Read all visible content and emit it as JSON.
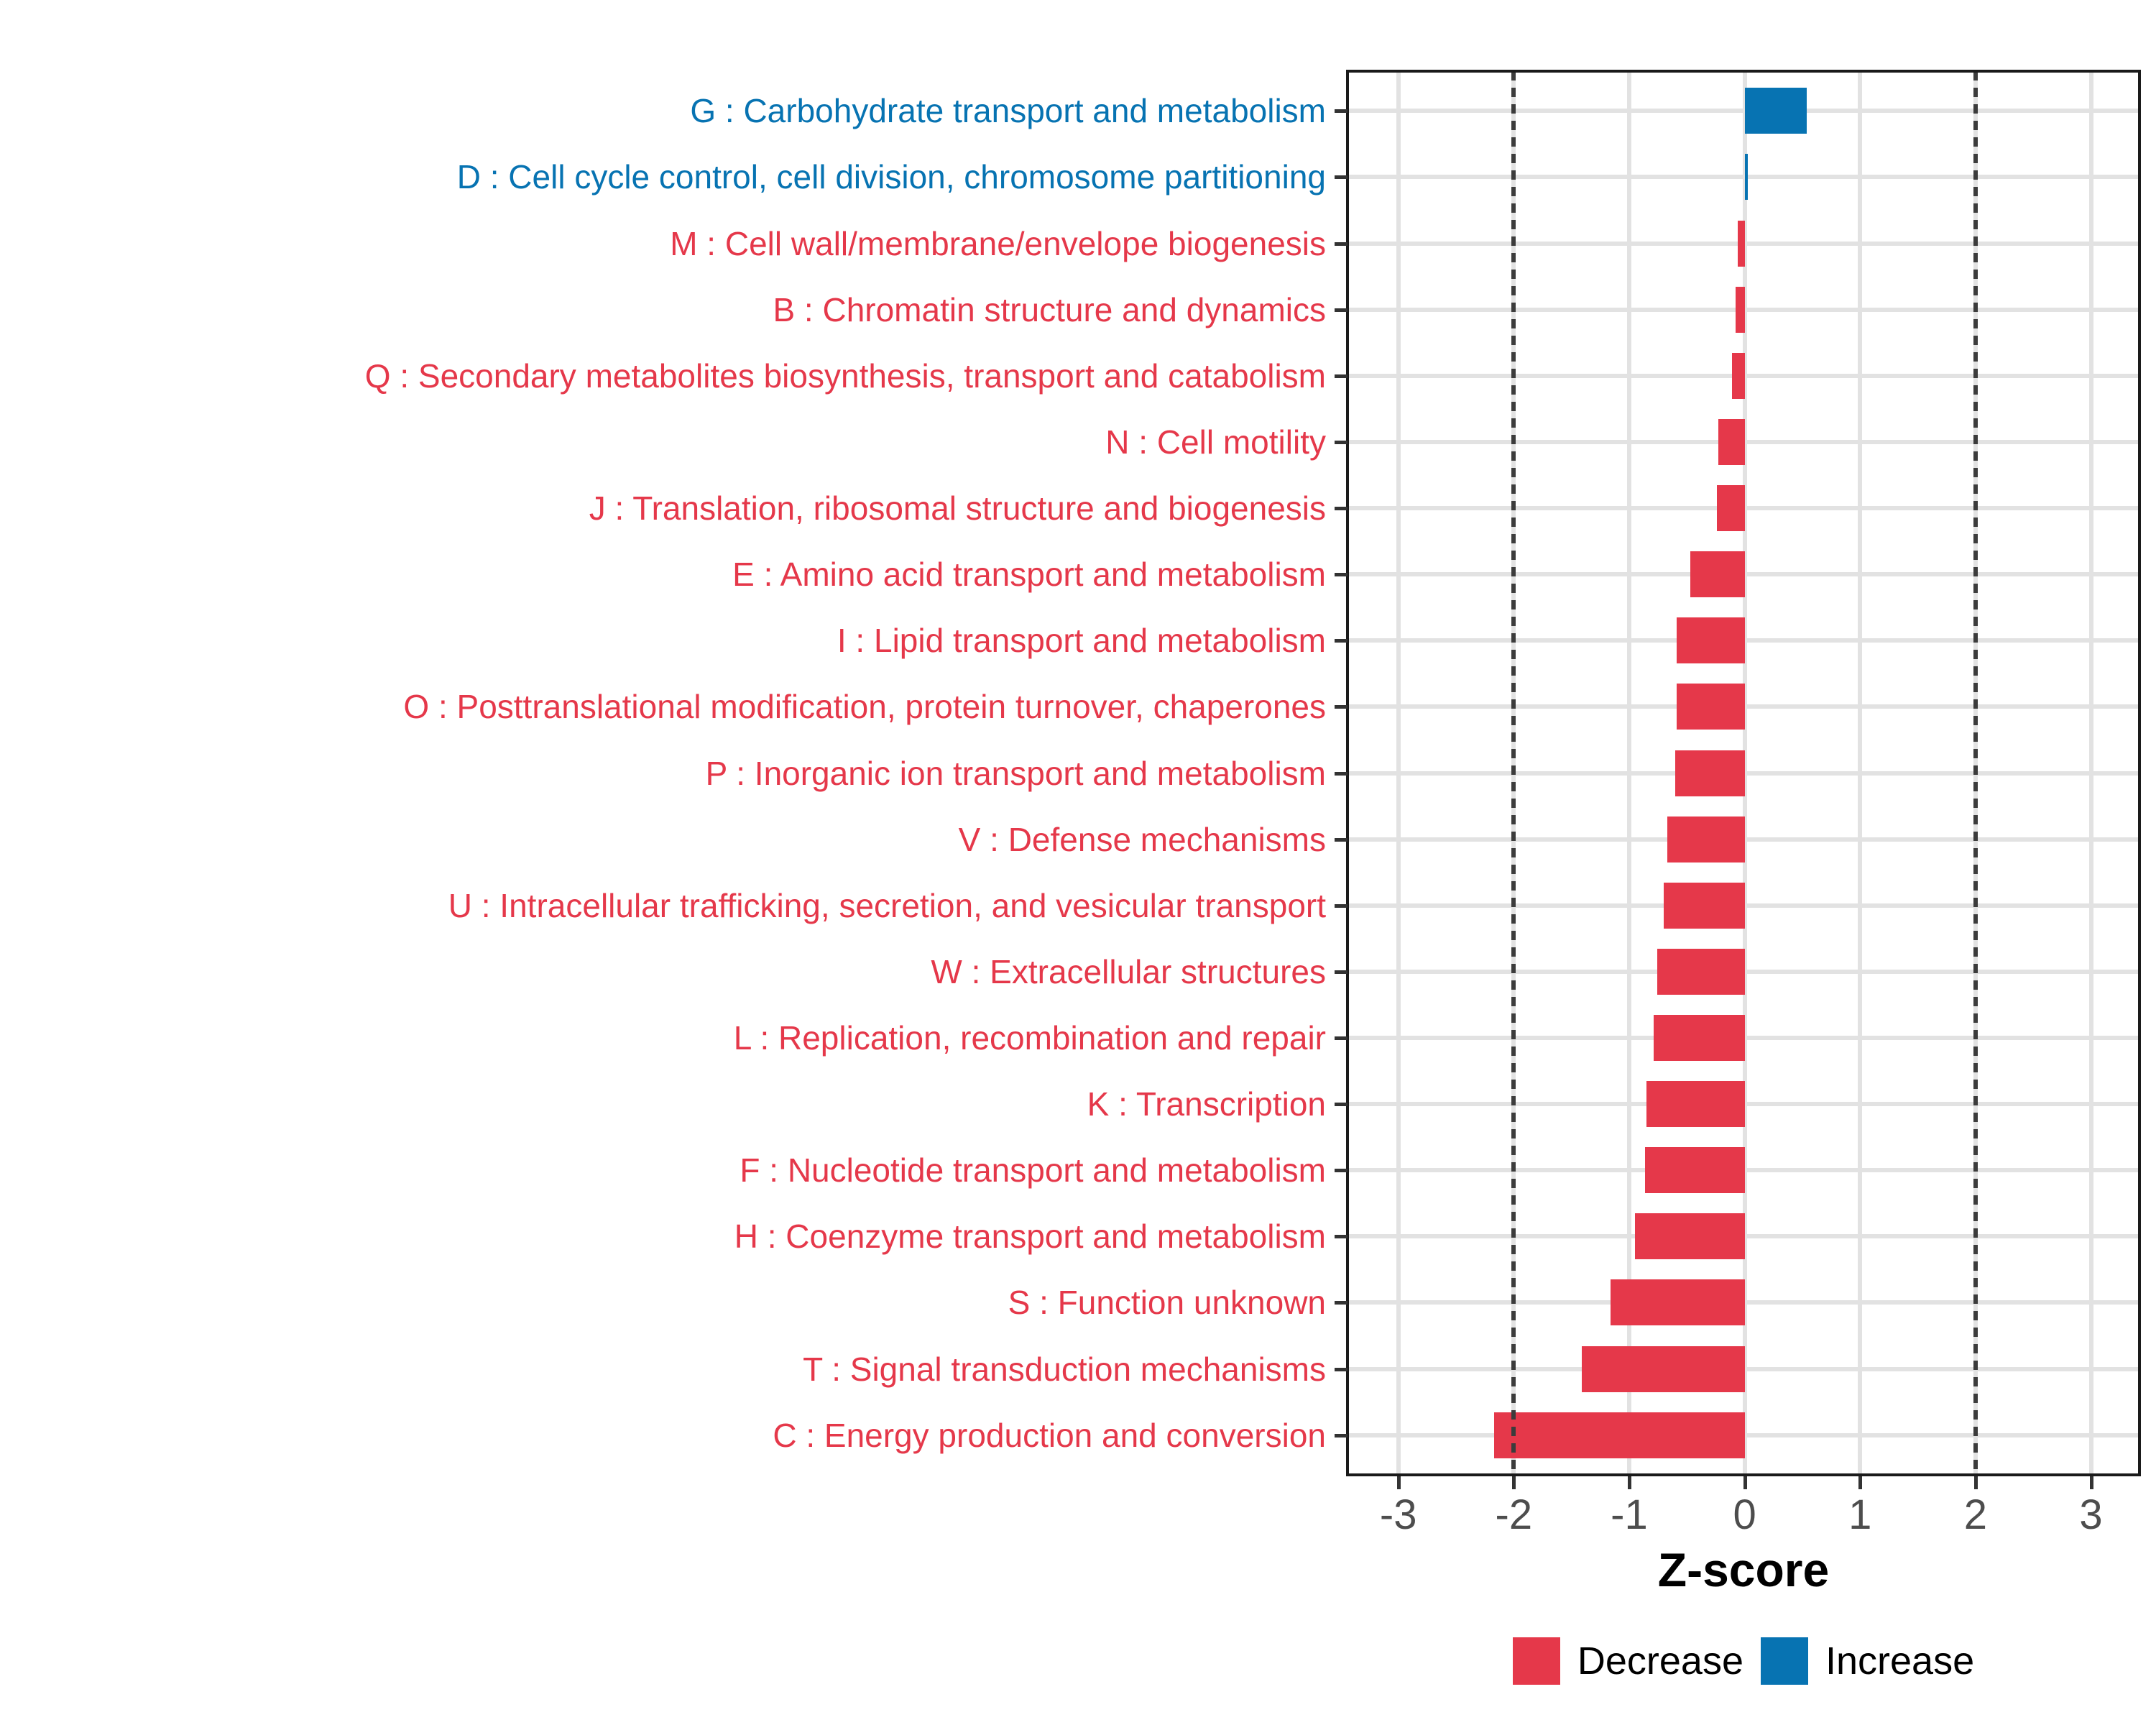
{
  "figure": {
    "background": "#FFFFFF",
    "panel_border_color": "#1A1A1A",
    "gridline_color": "#E2E2E2",
    "threshold_line_color": "#3C3C3C",
    "axis_tick_color": "#333333",
    "axis_text_color": "#4D4D4D"
  },
  "chart_data": {
    "type": "bar",
    "orientation": "horizontal",
    "title": "",
    "xlabel": "Z-score",
    "ylabel": "",
    "xlim": [
      -3.44,
      3.42
    ],
    "x_ticks": [
      -3,
      -2,
      -1,
      0,
      1,
      2,
      3
    ],
    "grid": "major-only",
    "threshold_lines": [
      -2,
      2
    ],
    "legend_position": "bottom-center",
    "legend": [
      {
        "label": "Decrease",
        "color": "#E5384A"
      },
      {
        "label": "Increase",
        "color": "#0773B2"
      }
    ],
    "bars": [
      {
        "label": "G : Carbohydrate transport and metabolism",
        "value": 0.54,
        "direction": "Increase"
      },
      {
        "label": "D : Cell cycle control, cell division, chromosome partitioning",
        "value": 0.03,
        "direction": "Increase"
      },
      {
        "label": "M : Cell wall/membrane/envelope biogenesis",
        "value": -0.06,
        "direction": "Decrease"
      },
      {
        "label": "B : Chromatin structure and dynamics",
        "value": -0.08,
        "direction": "Decrease"
      },
      {
        "label": "Q : Secondary metabolites biosynthesis, transport and catabolism",
        "value": -0.11,
        "direction": "Decrease"
      },
      {
        "label": "N : Cell motility",
        "value": -0.23,
        "direction": "Decrease"
      },
      {
        "label": "J : Translation, ribosomal structure and biogenesis",
        "value": -0.24,
        "direction": "Decrease"
      },
      {
        "label": "E : Amino acid transport and metabolism",
        "value": -0.47,
        "direction": "Decrease"
      },
      {
        "label": "I : Lipid transport and metabolism",
        "value": -0.59,
        "direction": "Decrease"
      },
      {
        "label": "O : Posttranslational modification, protein turnover, chaperones",
        "value": -0.59,
        "direction": "Decrease"
      },
      {
        "label": "P : Inorganic ion transport and metabolism",
        "value": -0.6,
        "direction": "Decrease"
      },
      {
        "label": "V : Defense mechanisms",
        "value": -0.67,
        "direction": "Decrease"
      },
      {
        "label": "U : Intracellular trafficking, secretion, and vesicular transport",
        "value": -0.7,
        "direction": "Decrease"
      },
      {
        "label": "W : Extracellular structures",
        "value": -0.76,
        "direction": "Decrease"
      },
      {
        "label": "L : Replication, recombination and repair",
        "value": -0.79,
        "direction": "Decrease"
      },
      {
        "label": "K : Transcription",
        "value": -0.85,
        "direction": "Decrease"
      },
      {
        "label": "F : Nucleotide transport and metabolism",
        "value": -0.86,
        "direction": "Decrease"
      },
      {
        "label": "H : Coenzyme transport and metabolism",
        "value": -0.95,
        "direction": "Decrease"
      },
      {
        "label": "S : Function unknown",
        "value": -1.16,
        "direction": "Decrease"
      },
      {
        "label": "T : Signal transduction mechanisms",
        "value": -1.41,
        "direction": "Decrease"
      },
      {
        "label": "C : Energy production and conversion",
        "value": -2.17,
        "direction": "Decrease"
      }
    ]
  }
}
